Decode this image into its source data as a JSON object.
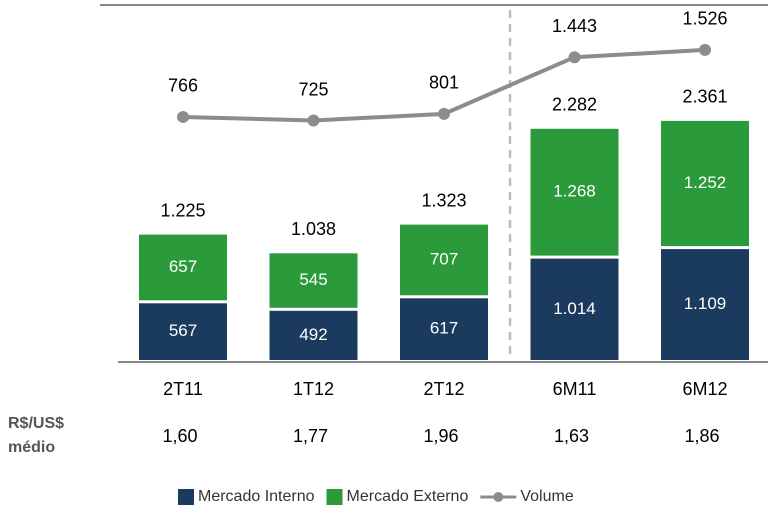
{
  "chart_data": {
    "type": "bar",
    "categories": [
      "2T11",
      "1T12",
      "2T12",
      "6M11",
      "6M12"
    ],
    "stacked": true,
    "series": [
      {
        "name": "Mercado Interno",
        "color": "#1b3b5e",
        "values": [
          567,
          492,
          617,
          1014,
          1109
        ],
        "value_labels": [
          "567",
          "492",
          "617",
          "1.014",
          "1.109"
        ]
      },
      {
        "name": "Mercado Externo",
        "color": "#2b9a3b",
        "values": [
          657,
          545,
          707,
          1268,
          1252
        ],
        "value_labels": [
          "657",
          "545",
          "707",
          "1.268",
          "1.252"
        ]
      },
      {
        "name": "Volume",
        "type": "line",
        "color": "#8c8c8c",
        "values": [
          766,
          725,
          801,
          1443,
          1526
        ],
        "value_labels": [
          "766",
          "725",
          "801",
          "1.443",
          "1.526"
        ]
      }
    ],
    "totals": {
      "values": [
        1225,
        1038,
        1323,
        2282,
        2361
      ],
      "value_labels": [
        "1.225",
        "1.038",
        "1.323",
        "2.282",
        "2.361"
      ]
    },
    "rate_label": [
      "R$/US$",
      "médio"
    ],
    "rates": {
      "values": [
        1.6,
        1.77,
        1.96,
        1.63,
        1.86
      ],
      "value_labels": [
        "1,60",
        "1,77",
        "1,96",
        "1,63",
        "1,86"
      ]
    }
  }
}
